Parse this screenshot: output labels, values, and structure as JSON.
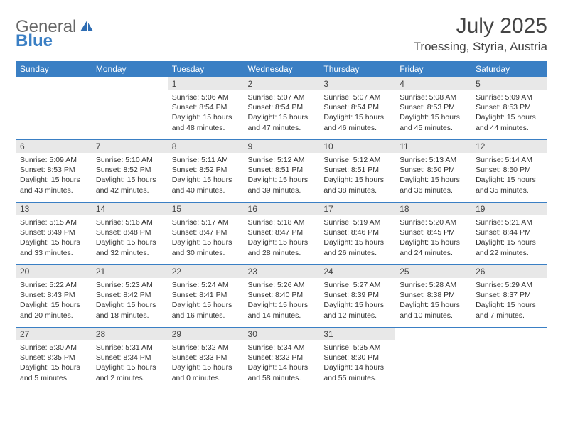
{
  "brand": {
    "part1": "General",
    "part2": "Blue"
  },
  "title": "July 2025",
  "location": "Troessing, Styria, Austria",
  "colors": {
    "header_bg": "#3a7fc4",
    "header_text": "#ffffff",
    "daynum_bg": "#e8e8e8",
    "border": "#3a7fc4",
    "text": "#333333",
    "background": "#ffffff"
  },
  "typography": {
    "title_fontsize": 30,
    "location_fontsize": 17,
    "header_fontsize": 12,
    "cell_fontsize": 10.5
  },
  "weekdays": [
    "Sunday",
    "Monday",
    "Tuesday",
    "Wednesday",
    "Thursday",
    "Friday",
    "Saturday"
  ],
  "weeks": [
    [
      {
        "day": "",
        "sunrise": "",
        "sunset": "",
        "daylight": "",
        "empty": true
      },
      {
        "day": "",
        "sunrise": "",
        "sunset": "",
        "daylight": "",
        "empty": true
      },
      {
        "day": "1",
        "sunrise": "Sunrise: 5:06 AM",
        "sunset": "Sunset: 8:54 PM",
        "daylight": "Daylight: 15 hours and 48 minutes."
      },
      {
        "day": "2",
        "sunrise": "Sunrise: 5:07 AM",
        "sunset": "Sunset: 8:54 PM",
        "daylight": "Daylight: 15 hours and 47 minutes."
      },
      {
        "day": "3",
        "sunrise": "Sunrise: 5:07 AM",
        "sunset": "Sunset: 8:54 PM",
        "daylight": "Daylight: 15 hours and 46 minutes."
      },
      {
        "day": "4",
        "sunrise": "Sunrise: 5:08 AM",
        "sunset": "Sunset: 8:53 PM",
        "daylight": "Daylight: 15 hours and 45 minutes."
      },
      {
        "day": "5",
        "sunrise": "Sunrise: 5:09 AM",
        "sunset": "Sunset: 8:53 PM",
        "daylight": "Daylight: 15 hours and 44 minutes."
      }
    ],
    [
      {
        "day": "6",
        "sunrise": "Sunrise: 5:09 AM",
        "sunset": "Sunset: 8:53 PM",
        "daylight": "Daylight: 15 hours and 43 minutes."
      },
      {
        "day": "7",
        "sunrise": "Sunrise: 5:10 AM",
        "sunset": "Sunset: 8:52 PM",
        "daylight": "Daylight: 15 hours and 42 minutes."
      },
      {
        "day": "8",
        "sunrise": "Sunrise: 5:11 AM",
        "sunset": "Sunset: 8:52 PM",
        "daylight": "Daylight: 15 hours and 40 minutes."
      },
      {
        "day": "9",
        "sunrise": "Sunrise: 5:12 AM",
        "sunset": "Sunset: 8:51 PM",
        "daylight": "Daylight: 15 hours and 39 minutes."
      },
      {
        "day": "10",
        "sunrise": "Sunrise: 5:12 AM",
        "sunset": "Sunset: 8:51 PM",
        "daylight": "Daylight: 15 hours and 38 minutes."
      },
      {
        "day": "11",
        "sunrise": "Sunrise: 5:13 AM",
        "sunset": "Sunset: 8:50 PM",
        "daylight": "Daylight: 15 hours and 36 minutes."
      },
      {
        "day": "12",
        "sunrise": "Sunrise: 5:14 AM",
        "sunset": "Sunset: 8:50 PM",
        "daylight": "Daylight: 15 hours and 35 minutes."
      }
    ],
    [
      {
        "day": "13",
        "sunrise": "Sunrise: 5:15 AM",
        "sunset": "Sunset: 8:49 PM",
        "daylight": "Daylight: 15 hours and 33 minutes."
      },
      {
        "day": "14",
        "sunrise": "Sunrise: 5:16 AM",
        "sunset": "Sunset: 8:48 PM",
        "daylight": "Daylight: 15 hours and 32 minutes."
      },
      {
        "day": "15",
        "sunrise": "Sunrise: 5:17 AM",
        "sunset": "Sunset: 8:47 PM",
        "daylight": "Daylight: 15 hours and 30 minutes."
      },
      {
        "day": "16",
        "sunrise": "Sunrise: 5:18 AM",
        "sunset": "Sunset: 8:47 PM",
        "daylight": "Daylight: 15 hours and 28 minutes."
      },
      {
        "day": "17",
        "sunrise": "Sunrise: 5:19 AM",
        "sunset": "Sunset: 8:46 PM",
        "daylight": "Daylight: 15 hours and 26 minutes."
      },
      {
        "day": "18",
        "sunrise": "Sunrise: 5:20 AM",
        "sunset": "Sunset: 8:45 PM",
        "daylight": "Daylight: 15 hours and 24 minutes."
      },
      {
        "day": "19",
        "sunrise": "Sunrise: 5:21 AM",
        "sunset": "Sunset: 8:44 PM",
        "daylight": "Daylight: 15 hours and 22 minutes."
      }
    ],
    [
      {
        "day": "20",
        "sunrise": "Sunrise: 5:22 AM",
        "sunset": "Sunset: 8:43 PM",
        "daylight": "Daylight: 15 hours and 20 minutes."
      },
      {
        "day": "21",
        "sunrise": "Sunrise: 5:23 AM",
        "sunset": "Sunset: 8:42 PM",
        "daylight": "Daylight: 15 hours and 18 minutes."
      },
      {
        "day": "22",
        "sunrise": "Sunrise: 5:24 AM",
        "sunset": "Sunset: 8:41 PM",
        "daylight": "Daylight: 15 hours and 16 minutes."
      },
      {
        "day": "23",
        "sunrise": "Sunrise: 5:26 AM",
        "sunset": "Sunset: 8:40 PM",
        "daylight": "Daylight: 15 hours and 14 minutes."
      },
      {
        "day": "24",
        "sunrise": "Sunrise: 5:27 AM",
        "sunset": "Sunset: 8:39 PM",
        "daylight": "Daylight: 15 hours and 12 minutes."
      },
      {
        "day": "25",
        "sunrise": "Sunrise: 5:28 AM",
        "sunset": "Sunset: 8:38 PM",
        "daylight": "Daylight: 15 hours and 10 minutes."
      },
      {
        "day": "26",
        "sunrise": "Sunrise: 5:29 AM",
        "sunset": "Sunset: 8:37 PM",
        "daylight": "Daylight: 15 hours and 7 minutes."
      }
    ],
    [
      {
        "day": "27",
        "sunrise": "Sunrise: 5:30 AM",
        "sunset": "Sunset: 8:35 PM",
        "daylight": "Daylight: 15 hours and 5 minutes."
      },
      {
        "day": "28",
        "sunrise": "Sunrise: 5:31 AM",
        "sunset": "Sunset: 8:34 PM",
        "daylight": "Daylight: 15 hours and 2 minutes."
      },
      {
        "day": "29",
        "sunrise": "Sunrise: 5:32 AM",
        "sunset": "Sunset: 8:33 PM",
        "daylight": "Daylight: 15 hours and 0 minutes."
      },
      {
        "day": "30",
        "sunrise": "Sunrise: 5:34 AM",
        "sunset": "Sunset: 8:32 PM",
        "daylight": "Daylight: 14 hours and 58 minutes."
      },
      {
        "day": "31",
        "sunrise": "Sunrise: 5:35 AM",
        "sunset": "Sunset: 8:30 PM",
        "daylight": "Daylight: 14 hours and 55 minutes."
      },
      {
        "day": "",
        "sunrise": "",
        "sunset": "",
        "daylight": "",
        "empty": true
      },
      {
        "day": "",
        "sunrise": "",
        "sunset": "",
        "daylight": "",
        "empty": true
      }
    ]
  ]
}
